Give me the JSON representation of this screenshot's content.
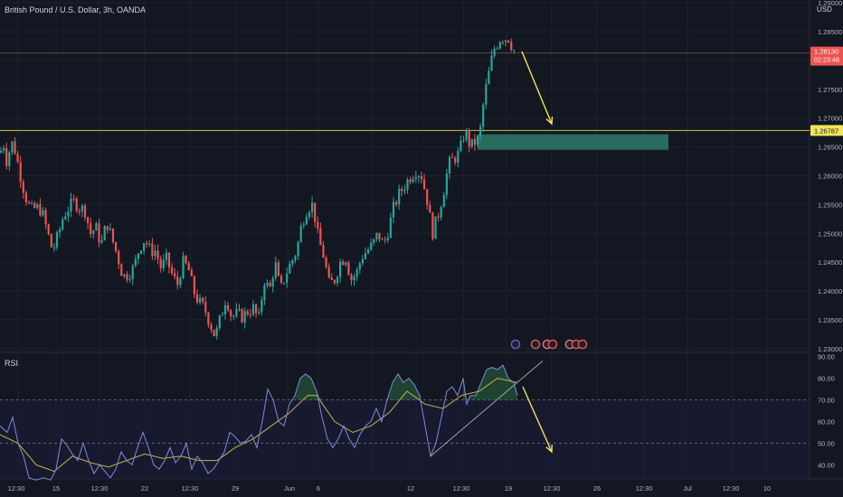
{
  "header": {
    "title": "British Pound / U.S. Dollar, 3h, OANDA",
    "currency": "USD",
    "rsi_label": "RSI"
  },
  "colors": {
    "background": "#131722",
    "up": "#26a69a",
    "down": "#ef5350",
    "grid": "#1e222d",
    "price_line": "#ef5350",
    "level_line": "#c6c63a",
    "zone": "#2e7a6a",
    "arrow": "#f2e35a",
    "rsi_line": "#7e8bd8",
    "rsi_ma": "#c9b24a",
    "rsi_band": "#1c1d3a"
  },
  "price_axis": {
    "ticks": [
      "1.29000",
      "1.28500",
      "1.28000",
      "1.27500",
      "1.27000",
      "1.26500",
      "1.26000",
      "1.25500",
      "1.25000",
      "1.24500",
      "1.24000",
      "1.23500",
      "1.23000"
    ],
    "current_price": "1.28130",
    "countdown": "02:23:48",
    "level_label": "1.26787"
  },
  "rsi_axis": {
    "ticks": [
      "90.00",
      "80.00",
      "70.00",
      "60.00",
      "50.00",
      "40.00"
    ]
  },
  "time_axis": {
    "ticks": [
      "12:30",
      "15",
      "12:30",
      "22",
      "12:30",
      "29",
      "Jun",
      "6",
      "12",
      "12:30",
      "19",
      "12:30",
      "26",
      "12:30",
      "Jul",
      "12:30",
      "10"
    ]
  },
  "chart_data": {
    "type": "candlestick",
    "symbol": "GBPUSD",
    "timeframe": "3h",
    "ylim": [
      1.2295,
      1.2905
    ],
    "current_price": 1.2813,
    "horizontal_level": 1.26787,
    "demand_zone": [
      1.2645,
      1.2672
    ],
    "close_path": [
      [
        0,
        1.264
      ],
      [
        4,
        1.2655
      ],
      [
        8,
        1.262
      ],
      [
        12,
        1.266
      ],
      [
        16,
        1.2648
      ],
      [
        22,
        1.2605
      ],
      [
        28,
        1.2565
      ],
      [
        34,
        1.254
      ],
      [
        40,
        1.2545
      ],
      [
        46,
        1.254
      ],
      [
        52,
        1.2505
      ],
      [
        58,
        1.247
      ],
      [
        64,
        1.2495
      ],
      [
        70,
        1.253
      ],
      [
        76,
        1.2545
      ],
      [
        82,
        1.2555
      ],
      [
        88,
        1.2545
      ],
      [
        94,
        1.254
      ],
      [
        100,
        1.25
      ],
      [
        106,
        1.251
      ],
      [
        112,
        1.248
      ],
      [
        118,
        1.252
      ],
      [
        124,
        1.249
      ],
      [
        130,
        1.246
      ],
      [
        136,
        1.2425
      ],
      [
        142,
        1.243
      ],
      [
        148,
        1.244
      ],
      [
        154,
        1.2475
      ],
      [
        160,
        1.249
      ],
      [
        166,
        1.247
      ],
      [
        172,
        1.247
      ],
      [
        178,
        1.244
      ],
      [
        184,
        1.2455
      ],
      [
        190,
        1.243
      ],
      [
        196,
        1.241
      ],
      [
        202,
        1.245
      ],
      [
        208,
        1.244
      ],
      [
        214,
        1.24
      ],
      [
        220,
        1.238
      ],
      [
        226,
        1.237
      ],
      [
        232,
        1.2345
      ],
      [
        238,
        1.232
      ],
      [
        244,
        1.2355
      ],
      [
        250,
        1.239
      ],
      [
        256,
        1.2355
      ],
      [
        262,
        1.236
      ],
      [
        268,
        1.2355
      ],
      [
        274,
        1.2365
      ],
      [
        280,
        1.237
      ],
      [
        286,
        1.235
      ],
      [
        292,
        1.242
      ],
      [
        298,
        1.24
      ],
      [
        304,
        1.245
      ],
      [
        310,
        1.24
      ],
      [
        316,
        1.243
      ],
      [
        322,
        1.245
      ],
      [
        328,
        1.247
      ],
      [
        334,
        1.252
      ],
      [
        340,
        1.2545
      ],
      [
        346,
        1.255
      ],
      [
        352,
        1.249
      ],
      [
        358,
        1.246
      ],
      [
        364,
        1.241
      ],
      [
        370,
        1.242
      ],
      [
        376,
        1.245
      ],
      [
        382,
        1.246
      ],
      [
        388,
        1.242
      ],
      [
        394,
        1.243
      ],
      [
        400,
        1.246
      ],
      [
        406,
        1.247
      ],
      [
        412,
        1.248
      ],
      [
        418,
        1.25
      ],
      [
        424,
        1.248
      ],
      [
        430,
        1.251
      ],
      [
        436,
        1.255
      ],
      [
        442,
        1.257
      ],
      [
        448,
        1.2585
      ],
      [
        454,
        1.26
      ],
      [
        460,
        1.261
      ],
      [
        466,
        1.26
      ],
      [
        472,
        1.256
      ],
      [
        478,
        1.25
      ],
      [
        484,
        1.253
      ],
      [
        490,
        1.257
      ],
      [
        496,
        1.262
      ],
      [
        502,
        1.263
      ],
      [
        508,
        1.264
      ],
      [
        514,
        1.268
      ],
      [
        520,
        1.265
      ],
      [
        526,
        1.266
      ],
      [
        530,
        1.2665
      ],
      [
        534,
        1.272
      ],
      [
        538,
        1.276
      ],
      [
        542,
        1.279
      ],
      [
        546,
        1.282
      ],
      [
        550,
        1.283
      ],
      [
        554,
        1.2842
      ],
      [
        558,
        1.2838
      ],
      [
        562,
        1.284
      ],
      [
        566,
        1.2825
      ],
      [
        570,
        1.2813
      ]
    ],
    "rsi": {
      "ylim": [
        33.5,
        91.5
      ],
      "levels": [
        70,
        50
      ],
      "path": [
        [
          0,
          58
        ],
        [
          8,
          55
        ],
        [
          14,
          62
        ],
        [
          20,
          50
        ],
        [
          26,
          44
        ],
        [
          32,
          34
        ],
        [
          40,
          33
        ],
        [
          48,
          34
        ],
        [
          56,
          33
        ],
        [
          62,
          38
        ],
        [
          68,
          52
        ],
        [
          74,
          49
        ],
        [
          80,
          45
        ],
        [
          86,
          42
        ],
        [
          92,
          50
        ],
        [
          98,
          42
        ],
        [
          104,
          36
        ],
        [
          110,
          40
        ],
        [
          116,
          37
        ],
        [
          122,
          34
        ],
        [
          128,
          38
        ],
        [
          134,
          46
        ],
        [
          140,
          42
        ],
        [
          146,
          40
        ],
        [
          152,
          48
        ],
        [
          158,
          55
        ],
        [
          164,
          48
        ],
        [
          170,
          40
        ],
        [
          176,
          38
        ],
        [
          182,
          42
        ],
        [
          188,
          48
        ],
        [
          194,
          41
        ],
        [
          200,
          44
        ],
        [
          206,
          50
        ],
        [
          212,
          38
        ],
        [
          218,
          44
        ],
        [
          224,
          41
        ],
        [
          230,
          36
        ],
        [
          236,
          38
        ],
        [
          242,
          42
        ],
        [
          248,
          46
        ],
        [
          254,
          55
        ],
        [
          260,
          53
        ],
        [
          266,
          50
        ],
        [
          272,
          51
        ],
        [
          278,
          54
        ],
        [
          284,
          48
        ],
        [
          290,
          60
        ],
        [
          296,
          75
        ],
        [
          302,
          70
        ],
        [
          308,
          60
        ],
        [
          314,
          58
        ],
        [
          320,
          68
        ],
        [
          326,
          72
        ],
        [
          332,
          80
        ],
        [
          338,
          82
        ],
        [
          344,
          80
        ],
        [
          350,
          74
        ],
        [
          356,
          62
        ],
        [
          362,
          52
        ],
        [
          368,
          48
        ],
        [
          374,
          52
        ],
        [
          380,
          58
        ],
        [
          386,
          52
        ],
        [
          392,
          48
        ],
        [
          398,
          54
        ],
        [
          404,
          58
        ],
        [
          410,
          60
        ],
        [
          416,
          66
        ],
        [
          422,
          60
        ],
        [
          428,
          70
        ],
        [
          434,
          78
        ],
        [
          440,
          82
        ],
        [
          446,
          78
        ],
        [
          452,
          80
        ],
        [
          458,
          77
        ],
        [
          464,
          72
        ],
        [
          470,
          58
        ],
        [
          476,
          44
        ],
        [
          482,
          50
        ],
        [
          488,
          62
        ],
        [
          494,
          74
        ],
        [
          500,
          76
        ],
        [
          506,
          72
        ],
        [
          512,
          80
        ],
        [
          516,
          68
        ],
        [
          520,
          72
        ],
        [
          526,
          72
        ],
        [
          532,
          78
        ],
        [
          538,
          84
        ],
        [
          544,
          85
        ],
        [
          550,
          84
        ],
        [
          556,
          86
        ],
        [
          562,
          80
        ],
        [
          568,
          78
        ],
        [
          572,
          72
        ]
      ],
      "ma_path": [
        [
          0,
          54
        ],
        [
          20,
          50
        ],
        [
          40,
          40
        ],
        [
          60,
          37
        ],
        [
          80,
          44
        ],
        [
          100,
          41
        ],
        [
          120,
          39
        ],
        [
          140,
          42
        ],
        [
          160,
          45
        ],
        [
          180,
          43
        ],
        [
          200,
          44
        ],
        [
          220,
          42
        ],
        [
          240,
          42
        ],
        [
          260,
          48
        ],
        [
          280,
          52
        ],
        [
          300,
          58
        ],
        [
          320,
          64
        ],
        [
          340,
          72
        ],
        [
          350,
          72
        ],
        [
          370,
          60
        ],
        [
          390,
          55
        ],
        [
          410,
          58
        ],
        [
          430,
          64
        ],
        [
          450,
          74
        ],
        [
          470,
          68
        ],
        [
          490,
          66
        ],
        [
          510,
          72
        ],
        [
          530,
          74
        ],
        [
          550,
          80
        ],
        [
          572,
          78
        ]
      ],
      "trendline": [
        [
          476,
          44
        ],
        [
          600,
          88
        ]
      ]
    }
  }
}
